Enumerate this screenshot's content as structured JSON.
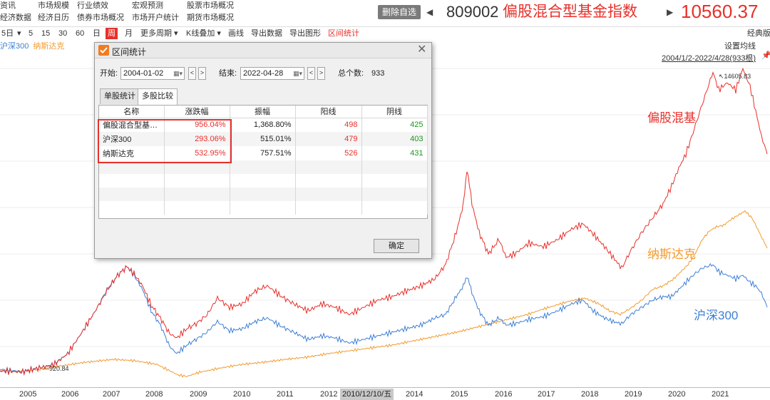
{
  "top_menu": {
    "row1": [
      "资讯",
      "市场规模",
      "行业绩效",
      "宏观预测",
      "股票市场概况"
    ],
    "row2": [
      "经济数据",
      "经济日历",
      "债券市场概况",
      "市场开户统计",
      "期货市场概况"
    ]
  },
  "header": {
    "delete_favorite": "删除自选",
    "prev_arrow": "◀",
    "next_arrow": "▶",
    "fund_code": "809002",
    "fund_name": "偏股混合型基金指数",
    "fund_value": "10560.37"
  },
  "toolbar": {
    "items": [
      "5日",
      "▾",
      "5",
      "15",
      "30",
      "60",
      "日",
      "周",
      "月",
      "更多周期 ▾",
      "K线叠加 ▾",
      "画线",
      "导出数据",
      "导出图形",
      "区间统计"
    ],
    "active": "周",
    "right_label": "经典版",
    "settings_label": "设置均线",
    "range_label": "2004/1/2-2022/4/28(933根)"
  },
  "legend": [
    {
      "name": "沪深300",
      "color": "#3d7fd4"
    },
    {
      "name": "纳斯达克",
      "color": "#f39a2d"
    }
  ],
  "chart_annotations": {
    "max_label": "14605.83",
    "min_label": "920.84",
    "series_labels": [
      {
        "text": "偏股混基",
        "color": "#e8302b"
      },
      {
        "text": "纳斯达克",
        "color": "#f39a2d"
      },
      {
        "text": "沪深300",
        "color": "#3d7fd4"
      }
    ]
  },
  "x_axis": {
    "labels": [
      "2005",
      "2006",
      "2007",
      "2008",
      "2009",
      "2010",
      "2011",
      "2012",
      "2014",
      "2015",
      "2016",
      "2017",
      "2018",
      "2019",
      "2020",
      "2021"
    ],
    "cursor_date": "2010/12/10/五"
  },
  "dialog": {
    "title": "区间统计",
    "start_label": "开始:",
    "start_date": "2004-01-02",
    "end_label": "结束:",
    "end_date": "2022-04-28",
    "total_label": "总个数:",
    "total_value": "933",
    "tabs": [
      "单股统计",
      "多股比较"
    ],
    "active_tab": "多股比较",
    "columns": [
      "名称",
      "涨跌幅",
      "振幅",
      "阳线",
      "阴线"
    ],
    "rows": [
      {
        "name": "偏股混合型基金...",
        "change": "956.04%",
        "amplitude": "1,368.80%",
        "up": "498",
        "down": "425"
      },
      {
        "name": "沪深300",
        "change": "293.06%",
        "amplitude": "515.01%",
        "up": "479",
        "down": "403"
      },
      {
        "name": "纳斯达克",
        "change": "532.95%",
        "amplitude": "757.51%",
        "up": "526",
        "down": "431"
      }
    ],
    "ok_label": "确定",
    "close_glyph": "✕"
  },
  "colors": {
    "red": "#e8302b",
    "blue": "#3d7fd4",
    "orange": "#f39a2d",
    "green": "#1a9a1a"
  }
}
